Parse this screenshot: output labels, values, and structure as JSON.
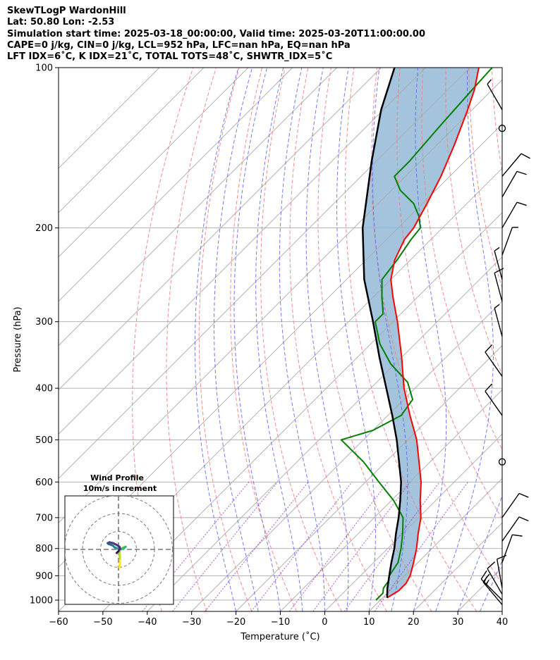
{
  "header": {
    "lines": [
      "SkewTLogP WardonHill",
      "Lat: 50.80   Lon: -2.53",
      "Simulation start time: 2025-03-18_00:00:00, Valid time: 2025-03-20T11:00:00.00",
      "CAPE=0 j/kg, CIN=0 j/kg, LCL=952 hPa, LFC=nan hPa, EQ=nan hPa",
      "LFT IDX=6˚C, K IDX=21˚C, TOTAL TOTS=48˚C, SHWTR_IDX=5˚C"
    ]
  },
  "chart_data": {
    "type": "skew-t log-p",
    "xlabel": "Temperature (˚C)",
    "ylabel": "Pressure (hPa)",
    "xlim": [
      -60,
      40
    ],
    "ylim": [
      1050,
      100
    ],
    "log_y": true,
    "grid": true,
    "x_ticks": [
      -60,
      -50,
      -40,
      -30,
      -20,
      -10,
      0,
      10,
      20,
      30,
      40
    ],
    "p_ticks": [
      1000,
      900,
      800,
      700,
      600,
      500,
      400,
      300,
      200,
      100
    ],
    "colors": {
      "temperature": "#ff0000",
      "dewpoint": "#008000",
      "parcel": "#000000",
      "cape_fill": "#a3c4dc",
      "isotherm": "#aaaaaa",
      "dry_adiabat": "#f08080",
      "moist_adiabat": "#5a64f0",
      "mixing_ratio": "#9932cc"
    },
    "temperature": {
      "p": [
        990,
        960,
        930,
        900,
        850,
        800,
        750,
        700,
        650,
        600,
        550,
        500,
        450,
        400,
        350,
        300,
        270,
        250,
        230,
        210,
        200,
        180,
        160,
        140,
        120,
        110,
        100
      ],
      "t": [
        11.0,
        12.0,
        12.0,
        11.2,
        9.0,
        6.5,
        3.5,
        0.5,
        -3.5,
        -7.5,
        -12.5,
        -18.0,
        -25.0,
        -32.5,
        -40.0,
        -49.0,
        -55.5,
        -60.0,
        -63.5,
        -66.0,
        -66.5,
        -69.0,
        -72.0,
        -76.0,
        -81.0,
        -84.0,
        -88.0
      ]
    },
    "dewpoint": {
      "p": [
        1000,
        970,
        950,
        920,
        900,
        850,
        800,
        750,
        700,
        650,
        600,
        550,
        500,
        480,
        450,
        420,
        390,
        360,
        330,
        300,
        290,
        270,
        250,
        230,
        210,
        200,
        190,
        180,
        170,
        160,
        150,
        140,
        130,
        120,
        110,
        100
      ],
      "t": [
        9.0,
        9.0,
        8.0,
        7.5,
        6.5,
        5.5,
        3.0,
        0.0,
        -3.5,
        -9.5,
        -17.0,
        -25.0,
        -35.0,
        -30.0,
        -27.0,
        -28.0,
        -33.0,
        -41.0,
        -48.0,
        -54.0,
        -54.0,
        -58.0,
        -62.0,
        -63.0,
        -64.5,
        -65.0,
        -68.0,
        -72.0,
        -78.0,
        -82.5,
        -82.5,
        -83.0,
        -83.5,
        -84.0,
        -84.5,
        -85.0
      ]
    },
    "parcel": {
      "p": [
        990,
        952,
        900,
        850,
        800,
        750,
        700,
        650,
        600,
        550,
        500,
        450,
        400,
        350,
        300,
        250,
        200,
        150,
        120,
        100
      ],
      "t": [
        11.0,
        9.0,
        6.5,
        4.0,
        1.5,
        -1.5,
        -4.5,
        -8.0,
        -12.0,
        -17.0,
        -22.5,
        -29.0,
        -36.5,
        -45.0,
        -54.5,
        -66.0,
        -78.0,
        -91.0,
        -100.5,
        -107.0
      ]
    },
    "wind_barbs": [
      {
        "p": 1020,
        "speed_kt": 15,
        "direction_deg": 320
      },
      {
        "p": 1000,
        "speed_kt": 15,
        "direction_deg": 315
      },
      {
        "p": 975,
        "speed_kt": 10,
        "direction_deg": 330
      },
      {
        "p": 950,
        "speed_kt": 10,
        "direction_deg": 350
      },
      {
        "p": 850,
        "speed_kt": 10,
        "direction_deg": 20
      },
      {
        "p": 775,
        "speed_kt": 10,
        "direction_deg": 35
      },
      {
        "p": 700,
        "speed_kt": 10,
        "direction_deg": 35
      },
      {
        "p": 550,
        "speed_kt": 0,
        "direction_deg": 0
      },
      {
        "p": 450,
        "speed_kt": 10,
        "direction_deg": 325
      },
      {
        "p": 380,
        "speed_kt": 10,
        "direction_deg": 325
      },
      {
        "p": 320,
        "speed_kt": 5,
        "direction_deg": 345
      },
      {
        "p": 275,
        "speed_kt": 10,
        "direction_deg": 345
      },
      {
        "p": 250,
        "speed_kt": 5,
        "direction_deg": 345
      },
      {
        "p": 225,
        "speed_kt": 5,
        "direction_deg": 20
      },
      {
        "p": 200,
        "speed_kt": 10,
        "direction_deg": 30
      },
      {
        "p": 175,
        "speed_kt": 10,
        "direction_deg": 30
      },
      {
        "p": 160,
        "speed_kt": 10,
        "direction_deg": 40
      },
      {
        "p": 130,
        "speed_kt": 0,
        "direction_deg": 0
      },
      {
        "p": 120,
        "speed_kt": 5,
        "direction_deg": 330
      }
    ],
    "hodograph": {
      "title": "Wind Profile",
      "subtitle": "10m/s increment",
      "rings_ms": [
        10,
        20,
        30
      ],
      "u": [
        0.5,
        0.8,
        0.8,
        0.5,
        1.0,
        2.5,
        4.0,
        3.0,
        1.0,
        -0.5,
        -2.0,
        -3.0,
        -4.0,
        -5.5,
        -6.0,
        -5.0,
        -3.0,
        -1.0,
        0.5,
        0.8,
        0.0,
        -1.0
      ],
      "v": [
        -10.0,
        -8.0,
        -5.0,
        -2.0,
        0.0,
        1.0,
        1.5,
        0.5,
        0.0,
        0.5,
        1.0,
        2.0,
        2.5,
        3.0,
        3.5,
        4.0,
        3.5,
        2.5,
        1.5,
        0.5,
        -1.0,
        -2.0
      ]
    }
  }
}
